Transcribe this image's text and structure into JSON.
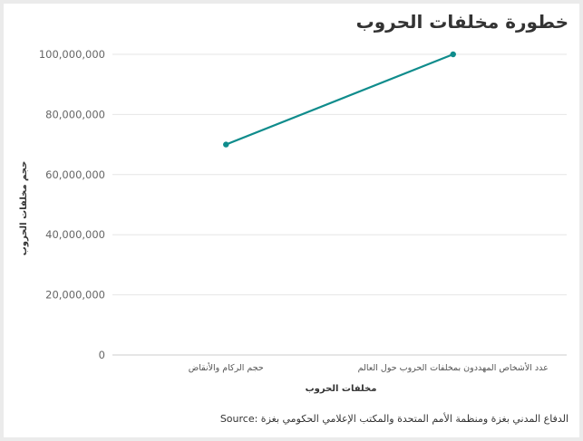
{
  "chart_data": {
    "type": "line",
    "title": "خطورة مخلفات الحروب",
    "xlabel": "مخلفات الحروب",
    "ylabel": "حجم مخلفات الحروب",
    "categories": [
      "حجم الركام والأنقاض",
      "عدد الأشخاص المهددون بمخلفات الحروب حول العالم"
    ],
    "series": [
      {
        "values": [
          70000000,
          100000000
        ],
        "color": "#0f8c8c"
      }
    ],
    "ylim": [
      0,
      100000000
    ],
    "yticks": [
      "0",
      "20,000,000",
      "40,000,000",
      "60,000,000",
      "80,000,000",
      "100,000,000"
    ],
    "grid": true,
    "source": "الدفاع المدني بغزة ومنظمة الأمم المتحدة والمكتب الإعلامي الحكومي بغزة :Source"
  }
}
